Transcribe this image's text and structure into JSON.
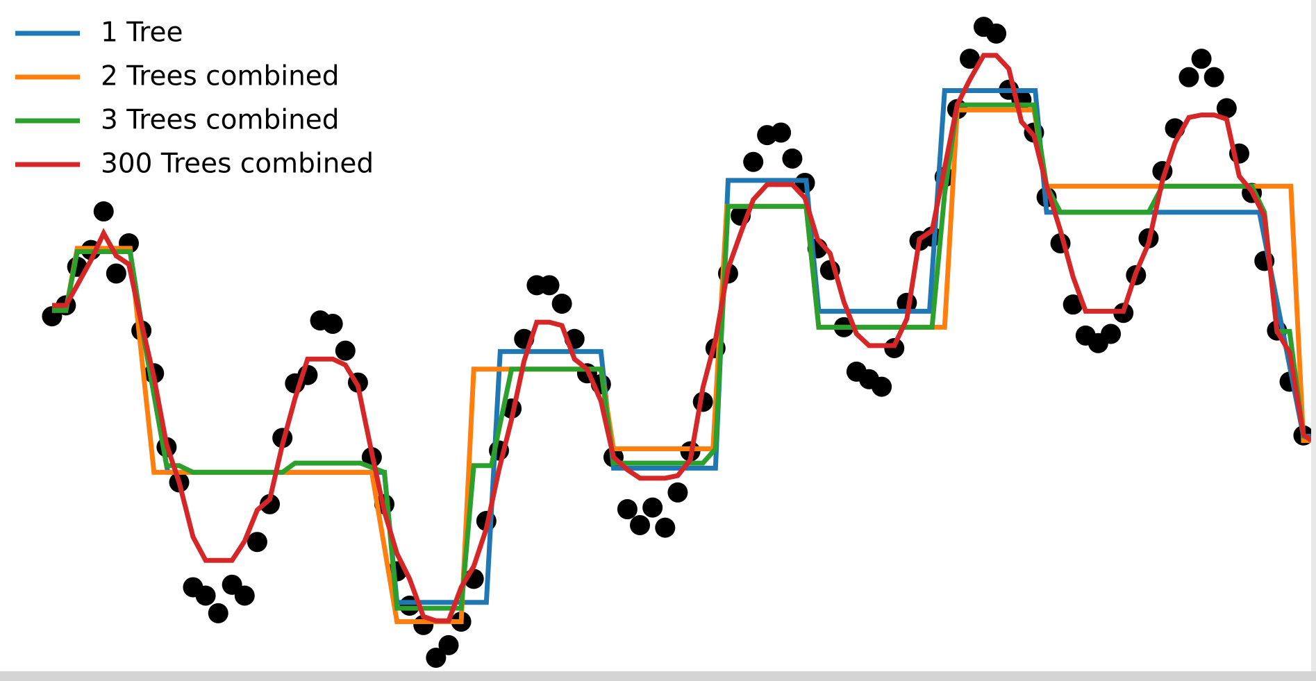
{
  "chart_data": {
    "type": "line",
    "legend": "upper left",
    "xlim": [
      -0.4,
      10
    ],
    "ylim": [
      -3,
      5
    ],
    "scatter": {
      "color": "#000000",
      "x": [
        0,
        0.11,
        0.2,
        0.31,
        0.41,
        0.51,
        0.61,
        0.71,
        0.81,
        0.91,
        1.01,
        1.12,
        1.22,
        1.32,
        1.43,
        1.53,
        1.63,
        1.73,
        1.83,
        1.93,
        2.03,
        2.13,
        2.23,
        2.33,
        2.43,
        2.54,
        2.64,
        2.74,
        2.84,
        2.95,
        3.05,
        3.15,
        3.25,
        3.35,
        3.45,
        3.55,
        3.65,
        3.75,
        3.85,
        3.95,
        4.05,
        4.15,
        4.25,
        4.36,
        4.46,
        4.57,
        4.67,
        4.77,
        4.87,
        4.97,
        5.07,
        5.17,
        5.27,
        5.37,
        5.47,
        5.57,
        5.68,
        5.79,
        5.88,
        5.98,
        6.08,
        6.18,
        6.29,
        6.39,
        6.49,
        6.59,
        6.69,
        6.79,
        6.89,
        6.99,
        7.09,
        7.19,
        7.29,
        7.4,
        7.5,
        7.6,
        7.7,
        7.8,
        7.9,
        8.01,
        8.11,
        8.21,
        8.31,
        8.41,
        8.51,
        8.61,
        8.71,
        8.82,
        8.92,
        9.03,
        9.13,
        9.23,
        9.33,
        9.43,
        9.53,
        9.63,
        9.73,
        9.83,
        9.94
      ],
      "values": [
        1.23,
        1.36,
        1.82,
        2.02,
        2.48,
        1.74,
        2.1,
        1.06,
        0.55,
        -0.33,
        -0.75,
        -2.0,
        -2.1,
        -2.31,
        -1.97,
        -2.1,
        -1.46,
        -1.01,
        -0.22,
        0.43,
        0.53,
        1.18,
        1.14,
        0.82,
        0.44,
        -0.45,
        -1.01,
        -1.81,
        -2.22,
        -2.45,
        -2.84,
        -2.69,
        -2.41,
        -1.9,
        -1.21,
        -0.37,
        0.13,
        0.96,
        1.6,
        1.6,
        1.38,
        0.96,
        0.55,
        0.42,
        -0.45,
        -1.07,
        -1.26,
        -1.05,
        -1.29,
        -0.87,
        -0.38,
        0.21,
        0.85,
        1.74,
        2.43,
        3.07,
        3.39,
        3.42,
        3.11,
        2.82,
        2.04,
        1.78,
        1.1,
        0.57,
        0.48,
        0.39,
        0.85,
        1.39,
        2.13,
        2.18,
        2.89,
        3.7,
        4.3,
        4.68,
        4.6,
        3.93,
        3.81,
        3.42,
        2.65,
        2.1,
        1.37,
        1.0,
        0.91,
        1.02,
        1.27,
        1.72,
        2.16,
        2.96,
        3.47,
        4.08,
        4.3,
        4.08,
        3.71,
        3.17,
        2.7,
        1.89,
        1.06,
        0.45,
        -0.19
      ]
    },
    "series": [
      {
        "name": "1 Tree",
        "color": "#1f77b4",
        "x": [
          0,
          0.11,
          0.2,
          0.62,
          0.72,
          0.92,
          2.64,
          2.74,
          3.45,
          3.56,
          4.36,
          4.46,
          5.27,
          5.37,
          5.99,
          6.09,
          6.97,
          7.09,
          7.81,
          7.9,
          9.59,
          9.94,
          10
        ],
        "values": [
          1.3,
          1.3,
          2.0,
          2.0,
          1.05,
          -0.63,
          -0.63,
          -2.18,
          -2.18,
          0.81,
          0.81,
          -0.58,
          -0.58,
          2.85,
          2.85,
          1.29,
          1.29,
          3.92,
          3.92,
          2.47,
          2.47,
          -0.2,
          -0.2
        ]
      },
      {
        "name": "2 Trees combined",
        "color": "#ff7f0e",
        "x": [
          0,
          0.11,
          0.2,
          0.62,
          0.81,
          2.54,
          2.74,
          3.25,
          3.35,
          4.36,
          4.46,
          5.25,
          5.36,
          5.99,
          6.09,
          7.09,
          7.19,
          7.8,
          7.9,
          9.84,
          9.94,
          10
        ],
        "values": [
          1.3,
          1.3,
          2.04,
          2.04,
          -0.63,
          -0.63,
          -2.41,
          -2.41,
          0.6,
          0.6,
          -0.35,
          -0.35,
          2.54,
          2.54,
          1.1,
          1.1,
          3.69,
          3.69,
          2.78,
          2.78,
          -0.25,
          -0.25
        ]
      },
      {
        "name": "3 Trees combined",
        "color": "#2ca02c",
        "x": [
          0,
          0.11,
          0.2,
          0.62,
          0.72,
          0.91,
          1.01,
          1.12,
          1.83,
          1.93,
          2.45,
          2.64,
          2.74,
          3.25,
          3.35,
          3.49,
          3.65,
          4.36,
          4.46,
          5.17,
          5.27,
          5.37,
          5.99,
          6.09,
          6.99,
          7.09,
          7.19,
          7.8,
          7.9,
          8.01,
          8.71,
          8.82,
          9.53,
          9.63,
          9.73,
          9.83,
          9.94,
          10
        ],
        "values": [
          1.3,
          1.3,
          2.0,
          2.0,
          1.05,
          -0.55,
          -0.55,
          -0.63,
          -0.63,
          -0.52,
          -0.52,
          -0.63,
          -2.25,
          -2.25,
          -0.55,
          -0.55,
          0.6,
          0.6,
          -0.52,
          -0.52,
          -0.35,
          2.54,
          2.54,
          1.1,
          1.1,
          2.69,
          3.75,
          3.75,
          2.78,
          2.47,
          2.47,
          2.78,
          2.78,
          2.47,
          1.05,
          1.05,
          -0.2,
          -0.23
        ]
      },
      {
        "name": "300 Trees combined",
        "color": "#d62728",
        "x": [
          0,
          0.11,
          0.2,
          0.31,
          0.41,
          0.51,
          0.61,
          0.71,
          0.81,
          0.91,
          1.01,
          1.12,
          1.22,
          1.43,
          1.53,
          1.63,
          1.73,
          1.83,
          1.93,
          2.03,
          2.23,
          2.33,
          2.43,
          2.54,
          2.64,
          2.74,
          2.84,
          2.95,
          3.05,
          3.15,
          3.25,
          3.35,
          3.45,
          3.55,
          3.65,
          3.75,
          3.85,
          3.95,
          4.05,
          4.15,
          4.25,
          4.36,
          4.46,
          4.57,
          4.67,
          4.87,
          4.97,
          5.07,
          5.17,
          5.27,
          5.37,
          5.47,
          5.57,
          5.68,
          5.88,
          5.98,
          6.08,
          6.18,
          6.29,
          6.39,
          6.49,
          6.69,
          6.79,
          6.89,
          6.99,
          7.09,
          7.19,
          7.29,
          7.4,
          7.5,
          7.6,
          7.7,
          7.8,
          7.9,
          8.01,
          8.11,
          8.21,
          8.51,
          8.61,
          8.71,
          8.82,
          8.92,
          9.03,
          9.13,
          9.23,
          9.33,
          9.43,
          9.53,
          9.63,
          9.73,
          9.83,
          9.94,
          10
        ],
        "values": [
          1.36,
          1.36,
          1.6,
          1.9,
          2.22,
          1.95,
          1.85,
          1.15,
          0.5,
          -0.3,
          -0.75,
          -1.4,
          -1.68,
          -1.68,
          -1.45,
          -1.08,
          -0.95,
          -0.3,
          0.25,
          0.72,
          0.72,
          0.65,
          0.4,
          -0.4,
          -1.1,
          -1.6,
          -1.9,
          -2.35,
          -2.4,
          -2.4,
          -2.0,
          -1.75,
          -1.3,
          -0.6,
          0,
          0.7,
          1.16,
          1.16,
          1.12,
          0.72,
          0.6,
          0.22,
          -0.45,
          -0.6,
          -0.7,
          -0.7,
          -0.67,
          -0.48,
          0.38,
          0.95,
          1.8,
          2.22,
          2.62,
          2.8,
          2.8,
          2.64,
          2.15,
          1.98,
          1.4,
          1.02,
          0.88,
          0.88,
          1.2,
          2.15,
          2.25,
          3.0,
          3.75,
          4.05,
          4.34,
          4.34,
          4.18,
          3.55,
          3.38,
          2.78,
          2.25,
          1.7,
          1.29,
          1.29,
          1.75,
          2.1,
          2.85,
          3.3,
          3.6,
          3.63,
          3.63,
          3.58,
          2.9,
          2.72,
          2.42,
          1.05,
          0.8,
          -0.18,
          -0.25
        ]
      }
    ]
  }
}
